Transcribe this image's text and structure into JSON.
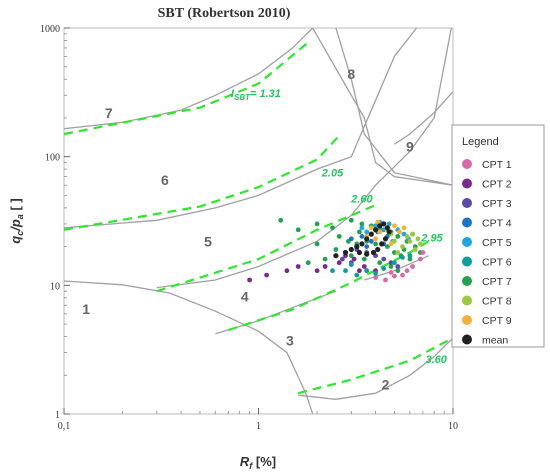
{
  "chart_data": {
    "type": "scatter",
    "title": "SBT (Robertson 2010)",
    "x_axis": {
      "scale": "log",
      "range": [
        0.1,
        10
      ],
      "tick_labels": [
        "0,1",
        "1",
        "10"
      ],
      "tick_values": [
        0.1,
        1,
        10
      ]
    },
    "y_axis": {
      "scale": "log",
      "range": [
        1,
        1000
      ],
      "tick_labels": [
        "1",
        "10",
        "100",
        "1000"
      ],
      "tick_values": [
        1,
        10,
        100,
        1000
      ]
    },
    "grid": false,
    "legend_placement": "right",
    "legend_title": "Legend",
    "zone_labels": [
      {
        "text": "1",
        "x": 0.13,
        "y": 6
      },
      {
        "text": "2",
        "x": 4.5,
        "y": 1.55
      },
      {
        "text": "3",
        "x": 1.45,
        "y": 3.4
      },
      {
        "text": "4",
        "x": 0.85,
        "y": 7.5
      },
      {
        "text": "5",
        "x": 0.55,
        "y": 20
      },
      {
        "text": "6",
        "x": 0.33,
        "y": 60
      },
      {
        "text": "7",
        "x": 0.17,
        "y": 200
      },
      {
        "text": "8",
        "x": 3.0,
        "y": 400
      },
      {
        "text": "9",
        "x": 6.0,
        "y": 110
      }
    ],
    "ic_lines": [
      {
        "label": "I",
        "sub": "SBT",
        "value_suffix": "= 1.31",
        "label_x": 0.97,
        "label_y": 290,
        "points": [
          [
            0.1,
            150
          ],
          [
            0.5,
            240
          ],
          [
            1.0,
            370
          ],
          [
            1.85,
            800
          ]
        ]
      },
      {
        "label": "",
        "sub": "",
        "value_suffix": "2.05",
        "label_x": 2.4,
        "label_y": 70,
        "points": [
          [
            0.1,
            27
          ],
          [
            0.5,
            41
          ],
          [
            1.0,
            58
          ],
          [
            2.0,
            95
          ],
          [
            2.65,
            150
          ]
        ]
      },
      {
        "label": "",
        "sub": "",
        "value_suffix": "2.60",
        "label_x": 3.4,
        "label_y": 44,
        "points": [
          [
            0.3,
            9
          ],
          [
            1.0,
            16
          ],
          [
            2.0,
            27
          ],
          [
            4.0,
            42
          ]
        ]
      },
      {
        "label": "",
        "sub": "",
        "value_suffix": "2.95",
        "label_x": 7.8,
        "label_y": 22,
        "points": [
          [
            0.7,
            4.5
          ],
          [
            1.5,
            6.5
          ],
          [
            3.0,
            10.5
          ],
          [
            6.0,
            18
          ],
          [
            7.5,
            22
          ]
        ]
      },
      {
        "label": "",
        "sub": "",
        "value_suffix": "3.60",
        "label_x": 8.2,
        "label_y": 2.5,
        "points": [
          [
            1.6,
            1.45
          ],
          [
            3.0,
            1.85
          ],
          [
            6.0,
            2.6
          ],
          [
            10.0,
            3.9
          ]
        ]
      }
    ],
    "zone_boundaries": [
      [
        [
          0.1,
          10.8
        ],
        [
          0.2,
          10.1
        ],
        [
          0.35,
          8.7
        ],
        [
          0.6,
          6.3
        ],
        [
          1.0,
          4.4
        ],
        [
          1.4,
          3.0
        ],
        [
          1.75,
          1.45
        ],
        [
          1.9,
          1.0
        ]
      ],
      [
        [
          1.6,
          1.4
        ],
        [
          2.5,
          1.3
        ],
        [
          4.0,
          1.45
        ],
        [
          6.0,
          2.0
        ],
        [
          8.0,
          2.8
        ],
        [
          10.0,
          3.9
        ]
      ],
      [
        [
          0.3,
          9.6
        ],
        [
          0.6,
          11
        ],
        [
          1.0,
          14
        ],
        [
          2.0,
          22
        ],
        [
          3.0,
          35
        ],
        [
          4.0,
          60
        ],
        [
          6.0,
          110
        ],
        [
          8.0,
          200
        ],
        [
          9.8,
          1000
        ]
      ],
      [
        [
          0.1,
          28
        ],
        [
          0.3,
          32
        ],
        [
          0.6,
          40
        ],
        [
          1.0,
          50
        ],
        [
          2.0,
          80
        ],
        [
          3.0,
          100
        ],
        [
          5.0,
          600
        ],
        [
          6.5,
          1000
        ]
      ],
      [
        [
          0.1,
          165
        ],
        [
          0.2,
          185
        ],
        [
          0.4,
          230
        ],
        [
          0.6,
          300
        ],
        [
          1.0,
          440
        ],
        [
          1.5,
          700
        ],
        [
          1.9,
          1000
        ]
      ],
      [
        [
          1.9,
          1000
        ],
        [
          3.0,
          300
        ],
        [
          3.5,
          200
        ],
        [
          4.0,
          90
        ],
        [
          5.0,
          70
        ],
        [
          10.0,
          60
        ]
      ],
      [
        [
          2.5,
          1000
        ],
        [
          3.0,
          400
        ],
        [
          3.5,
          150
        ],
        [
          5.0,
          75
        ],
        [
          10.0,
          60
        ]
      ],
      [
        [
          5.0,
          125
        ],
        [
          6.0,
          150
        ],
        [
          8.0,
          220
        ],
        [
          10.0,
          320
        ]
      ],
      [
        [
          0.6,
          4.2
        ],
        [
          1.0,
          5.3
        ],
        [
          1.6,
          7.0
        ],
        [
          2.5,
          9.0
        ]
      ],
      [
        [
          3.5,
          11
        ],
        [
          5.0,
          13
        ],
        [
          7.5,
          17
        ]
      ]
    ],
    "series": [
      {
        "name": "CPT 1",
        "color": "#d96aa8"
      },
      {
        "name": "CPT 2",
        "color": "#7a2a8c"
      },
      {
        "name": "CPT 3",
        "color": "#5b4aa8"
      },
      {
        "name": "CPT 4",
        "color": "#1f72c4"
      },
      {
        "name": "CPT 5",
        "color": "#1ea7dd"
      },
      {
        "name": "CPT 6",
        "color": "#119c9c"
      },
      {
        "name": "CPT 7",
        "color": "#22a150"
      },
      {
        "name": "CPT 8",
        "color": "#9ac843"
      },
      {
        "name": "CPT 9",
        "color": "#f4b13a"
      },
      {
        "name": "mean",
        "color": "#222222"
      }
    ],
    "clusters": [
      {
        "series": "CPT 7",
        "points": [
          [
            1.3,
            32
          ],
          [
            1.6,
            27
          ],
          [
            2.0,
            30
          ],
          [
            2.4,
            28
          ],
          [
            3.0,
            32
          ],
          [
            3.4,
            30
          ],
          [
            3.8,
            29
          ],
          [
            4.2,
            28
          ],
          [
            4.8,
            26
          ],
          [
            5.2,
            24
          ],
          [
            5.8,
            22
          ],
          [
            6.2,
            25
          ],
          [
            2.9,
            22
          ],
          [
            3.2,
            21
          ],
          [
            3.6,
            22
          ],
          [
            4.0,
            21
          ],
          [
            4.6,
            20
          ],
          [
            5.0,
            18
          ],
          [
            5.6,
            19
          ],
          [
            6.0,
            16
          ],
          [
            2.5,
            19
          ],
          [
            3.0,
            17
          ],
          [
            3.5,
            16
          ],
          [
            4.2,
            15
          ],
          [
            4.8,
            14
          ],
          [
            5.2,
            13
          ],
          [
            6.4,
            20
          ],
          [
            6.8,
            18
          ],
          [
            2.2,
            16
          ],
          [
            2.6,
            24
          ],
          [
            3.3,
            26
          ],
          [
            4.5,
            23
          ],
          [
            3.9,
            18
          ],
          [
            5.4,
            17
          ],
          [
            1.8,
            15
          ],
          [
            2.0,
            21
          ]
        ]
      },
      {
        "series": "CPT 1",
        "points": [
          [
            4.0,
            11.5
          ],
          [
            4.5,
            11
          ],
          [
            5.0,
            11.8
          ],
          [
            5.5,
            12
          ],
          [
            6.2,
            14
          ],
          [
            6.8,
            16
          ],
          [
            4.8,
            12.6
          ],
          [
            3.6,
            13
          ],
          [
            5.8,
            13
          ],
          [
            7.0,
            18
          ]
        ]
      },
      {
        "series": "CPT 2",
        "points": [
          [
            2.8,
            17
          ],
          [
            3.1,
            16
          ],
          [
            3.5,
            14
          ],
          [
            4.0,
            13
          ],
          [
            2.2,
            14
          ],
          [
            2.6,
            15
          ],
          [
            3.3,
            13
          ],
          [
            1.4,
            13
          ],
          [
            1.6,
            14
          ],
          [
            2.0,
            13
          ],
          [
            0.9,
            11
          ],
          [
            1.1,
            12
          ]
        ]
      },
      {
        "series": "CPT 3",
        "points": [
          [
            3.2,
            19
          ],
          [
            3.6,
            18
          ],
          [
            4.0,
            17
          ],
          [
            4.4,
            16
          ],
          [
            3.0,
            15
          ],
          [
            2.7,
            16
          ],
          [
            4.8,
            15
          ],
          [
            5.2,
            14
          ]
        ]
      },
      {
        "series": "CPT 4",
        "points": [
          [
            3.4,
            24
          ],
          [
            3.8,
            22
          ],
          [
            4.1,
            26
          ],
          [
            4.4,
            21
          ],
          [
            3.6,
            20
          ],
          [
            4.6,
            24
          ],
          [
            3.0,
            23
          ]
        ]
      },
      {
        "series": "CPT 5",
        "points": [
          [
            4.0,
            29
          ],
          [
            4.4,
            27
          ],
          [
            4.7,
            30
          ],
          [
            5.2,
            27
          ],
          [
            3.6,
            26
          ],
          [
            5.6,
            25
          ],
          [
            4.2,
            31
          ],
          [
            3.4,
            28
          ],
          [
            5.9,
            23
          ],
          [
            4.9,
            22
          ]
        ]
      },
      {
        "series": "CPT 6",
        "points": [
          [
            2.8,
            13
          ],
          [
            3.2,
            12
          ],
          [
            3.6,
            13
          ],
          [
            4.0,
            12.4
          ],
          [
            4.4,
            13.5
          ],
          [
            3.0,
            14.5
          ],
          [
            5.0,
            15
          ],
          [
            5.5,
            16.5
          ],
          [
            2.4,
            13
          ],
          [
            6.0,
            17
          ]
        ]
      },
      {
        "series": "CPT 8",
        "points": [
          [
            5.0,
            22
          ],
          [
            5.5,
            20
          ],
          [
            6.0,
            22
          ],
          [
            6.4,
            19
          ],
          [
            5.8,
            24
          ],
          [
            6.8,
            21
          ],
          [
            5.2,
            18
          ],
          [
            6.2,
            25
          ],
          [
            4.8,
            25
          ],
          [
            6.6,
            23
          ]
        ]
      },
      {
        "series": "CPT 9",
        "points": [
          [
            3.8,
            28
          ],
          [
            4.2,
            26
          ],
          [
            4.6,
            27
          ],
          [
            5.0,
            29
          ],
          [
            4.4,
            30
          ],
          [
            3.6,
            24
          ],
          [
            5.3,
            26
          ],
          [
            4.0,
            23
          ],
          [
            4.8,
            21
          ],
          [
            5.6,
            28
          ],
          [
            4.1,
            31
          ],
          [
            3.9,
            18
          ]
        ]
      },
      {
        "series": "mean",
        "points": [
          [
            3.0,
            19
          ],
          [
            3.3,
            18
          ],
          [
            3.6,
            17.5
          ],
          [
            3.9,
            18
          ],
          [
            4.1,
            19
          ],
          [
            4.3,
            21
          ],
          [
            4.5,
            23
          ],
          [
            4.7,
            26
          ],
          [
            4.6,
            28
          ],
          [
            4.4,
            30
          ],
          [
            4.2,
            29
          ],
          [
            4.0,
            27
          ],
          [
            3.8,
            25
          ],
          [
            3.6,
            23
          ],
          [
            3.4,
            21
          ],
          [
            3.2,
            20
          ],
          [
            2.8,
            18
          ],
          [
            2.5,
            17
          ]
        ]
      }
    ]
  }
}
